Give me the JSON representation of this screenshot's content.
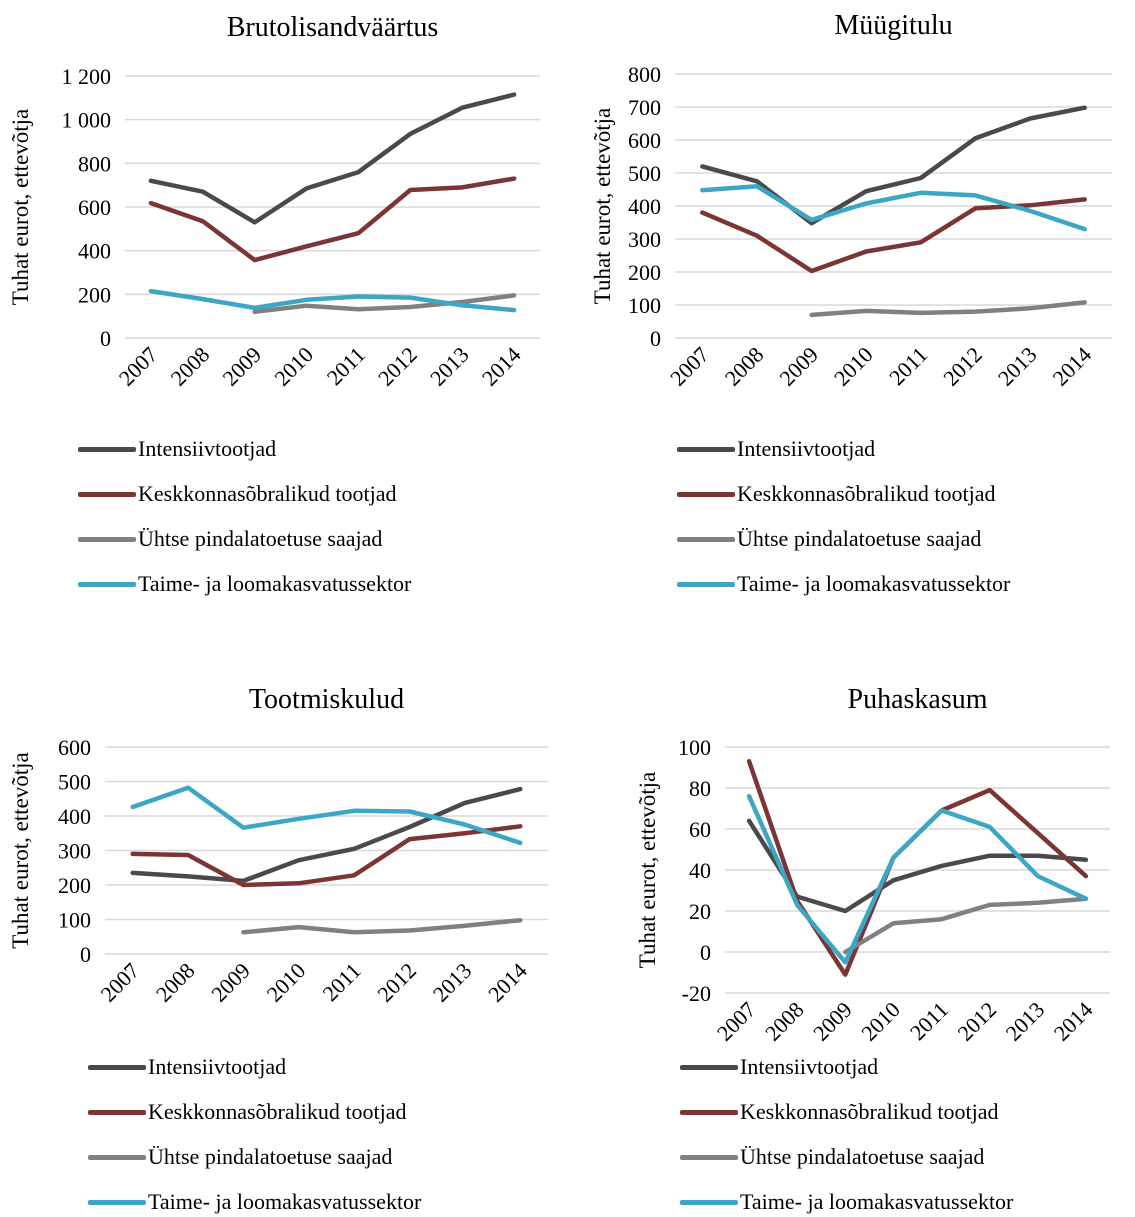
{
  "chart_data": [
    {
      "type": "line",
      "title": "Brutolisandväärtus",
      "ylabel": "Tuhat eurot, ettevõtja",
      "xlabel": "",
      "categories": [
        "2007",
        "2008",
        "2009",
        "2010",
        "2011",
        "2012",
        "2013",
        "2014"
      ],
      "ylim": [
        0,
        1200
      ],
      "yticks": [
        0,
        200,
        400,
        600,
        800,
        1000,
        1200
      ],
      "ytick_labels": [
        "0",
        "200",
        "400",
        "600",
        "800",
        "1 000",
        "1 200"
      ],
      "grid": true,
      "legend": "bottom",
      "series": [
        {
          "name": "Intensiivtootjad",
          "color": "#4a4a4a",
          "values": [
            720,
            670,
            530,
            685,
            760,
            935,
            1055,
            1115
          ]
        },
        {
          "name": "Keskkonnasõbralikud tootjad",
          "color": "#7b3534",
          "values": [
            618,
            535,
            357,
            420,
            480,
            678,
            690,
            730
          ]
        },
        {
          "name": "Ühtse pindalatoetuse saajad",
          "color": "#808080",
          "values": [
            null,
            null,
            120,
            148,
            132,
            142,
            165,
            195
          ]
        },
        {
          "name": "Taime- ja loomakasvatussektor",
          "color": "#3ca6c4",
          "values": [
            215,
            178,
            138,
            175,
            190,
            185,
            150,
            128
          ]
        }
      ]
    },
    {
      "type": "line",
      "title": "Müügitulu",
      "ylabel": "Tuhat eurot, ettevõtja",
      "xlabel": "",
      "categories": [
        "2007",
        "2008",
        "2009",
        "2010",
        "2011",
        "2012",
        "2013",
        "2014"
      ],
      "ylim": [
        0,
        800
      ],
      "yticks": [
        0,
        100,
        200,
        300,
        400,
        500,
        600,
        700,
        800
      ],
      "ytick_labels": [
        "0",
        "100",
        "200",
        "300",
        "400",
        "500",
        "600",
        "700",
        "800"
      ],
      "grid": true,
      "legend": "bottom",
      "series": [
        {
          "name": "Intensiivtootjad",
          "color": "#4a4a4a",
          "values": [
            520,
            475,
            348,
            445,
            485,
            605,
            665,
            698
          ]
        },
        {
          "name": "Keskkonnasõbralikud tootjad",
          "color": "#7b3534",
          "values": [
            380,
            310,
            203,
            262,
            290,
            393,
            402,
            420
          ]
        },
        {
          "name": "Ühtse pindalatoetuse saajad",
          "color": "#808080",
          "values": [
            null,
            null,
            70,
            82,
            76,
            80,
            90,
            108
          ]
        },
        {
          "name": "Taime- ja loomakasvatussektor",
          "color": "#3ca6c4",
          "values": [
            448,
            460,
            358,
            408,
            440,
            432,
            385,
            330
          ]
        }
      ]
    },
    {
      "type": "line",
      "title": "Tootmiskulud",
      "ylabel": "Tuhat eurot, ettevõtja",
      "xlabel": "",
      "categories": [
        "2007",
        "2008",
        "2009",
        "2010",
        "2011",
        "2012",
        "2013",
        "2014"
      ],
      "ylim": [
        0,
        600
      ],
      "yticks": [
        0,
        100,
        200,
        300,
        400,
        500,
        600
      ],
      "ytick_labels": [
        "0",
        "100",
        "200",
        "300",
        "400",
        "500",
        "600"
      ],
      "grid": true,
      "legend": "bottom",
      "series": [
        {
          "name": "Intensiivtootjad",
          "color": "#4a4a4a",
          "values": [
            235,
            225,
            212,
            272,
            305,
            368,
            438,
            478
          ]
        },
        {
          "name": "Keskkonnasõbralikud tootjad",
          "color": "#7b3534",
          "values": [
            290,
            287,
            200,
            205,
            228,
            333,
            350,
            370
          ]
        },
        {
          "name": "Ühtse pindalatoetuse saajad",
          "color": "#808080",
          "values": [
            null,
            null,
            63,
            78,
            63,
            68,
            82,
            98
          ]
        },
        {
          "name": "Taime- ja loomakasvatussektor",
          "color": "#3ca6c4",
          "values": [
            426,
            482,
            366,
            392,
            415,
            413,
            375,
            322
          ]
        }
      ]
    },
    {
      "type": "line",
      "title": "Puhaskasum",
      "ylabel": "Tuhat eurot, ettevõtja",
      "xlabel": "",
      "categories": [
        "2007",
        "2008",
        "2009",
        "2010",
        "2011",
        "2012",
        "2013",
        "2014"
      ],
      "ylim": [
        -20,
        100
      ],
      "yticks": [
        -20,
        0,
        20,
        40,
        60,
        80,
        100
      ],
      "ytick_labels": [
        "-20",
        "0",
        "20",
        "40",
        "60",
        "80",
        "100"
      ],
      "grid": true,
      "legend": "bottom",
      "series": [
        {
          "name": "Intensiivtootjad",
          "color": "#4a4a4a",
          "values": [
            64,
            27,
            20,
            35,
            42,
            47,
            47,
            45
          ]
        },
        {
          "name": "Keskkonnasõbralikud tootjad",
          "color": "#7b3534",
          "values": [
            93,
            25,
            -11,
            46,
            69,
            79,
            58,
            37
          ]
        },
        {
          "name": "Ühtse pindalatoetuse saajad",
          "color": "#808080",
          "values": [
            null,
            null,
            0,
            14,
            16,
            23,
            24,
            26
          ]
        },
        {
          "name": "Taime- ja loomakasvatussektor",
          "color": "#3ca6c4",
          "values": [
            76,
            23,
            -5,
            46,
            69,
            61,
            37,
            26
          ]
        }
      ]
    }
  ]
}
